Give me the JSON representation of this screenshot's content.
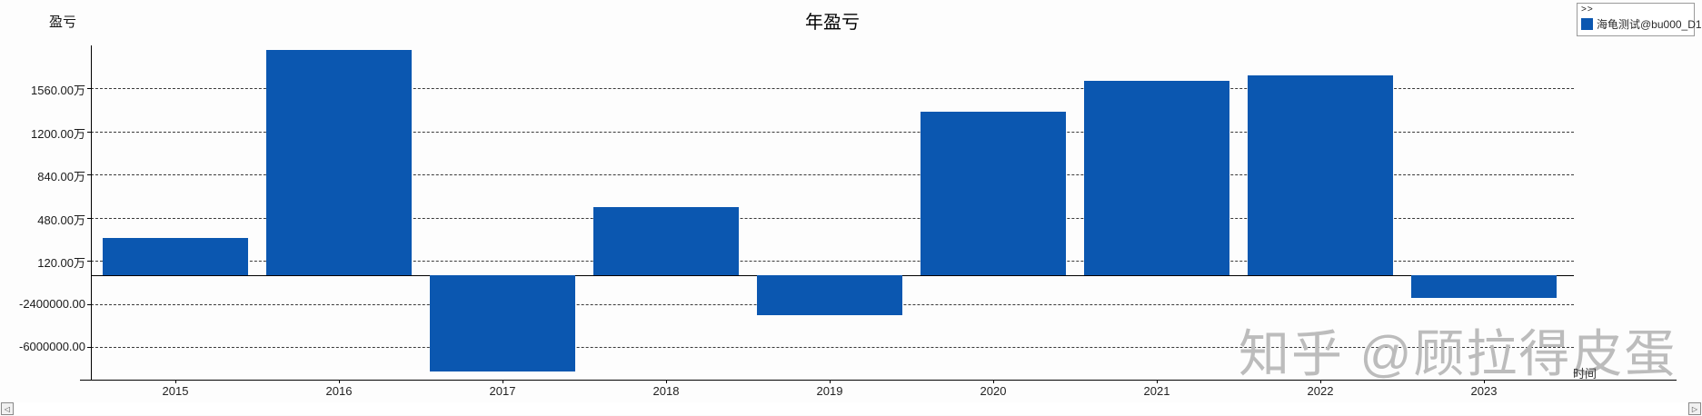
{
  "header": {
    "title": "年盈亏",
    "y_axis_title": "盈亏",
    "x_axis_title": "时间"
  },
  "legend": {
    "expand_label": ">>",
    "series_label": "海龟测试@bu000_D1",
    "swatch_color": "#0b57b0"
  },
  "watermark": "知乎 @顾拉得皮蛋",
  "scrollbar": {
    "left_arrow": "◁",
    "right_arrow": "▷"
  },
  "colors": {
    "bar": "#0b57b0",
    "gridline": "#3a3a3a",
    "axis": "#000000",
    "watermark": "#bcbcbc"
  },
  "chart_data": {
    "type": "bar",
    "title": "年盈亏",
    "xlabel": "时间",
    "ylabel": "盈亏",
    "series_name": "海龟测试@bu000_D1",
    "categories": [
      "2015",
      "2016",
      "2017",
      "2018",
      "2019",
      "2020",
      "2021",
      "2022",
      "2023"
    ],
    "values": [
      3100000,
      18800000,
      -8000000,
      5650000,
      -3300000,
      13650000,
      16200000,
      16650000,
      -1900000
    ],
    "bar_color": "#0b57b0",
    "yticks": [
      {
        "label": "1560.00万",
        "value": 15600000
      },
      {
        "label": "1200.00万",
        "value": 12000000
      },
      {
        "label": "840.00万",
        "value": 8400000
      },
      {
        "label": "480.00万",
        "value": 4800000
      },
      {
        "label": "120.00万",
        "value": 1200000
      },
      {
        "label": "-2400000.00",
        "value": -2400000
      },
      {
        "label": "-6000000.00",
        "value": -6000000
      }
    ],
    "ylim": [
      -8700000,
      19200000
    ],
    "grid": "dashed-horizontal",
    "legend_position": "top-right"
  }
}
